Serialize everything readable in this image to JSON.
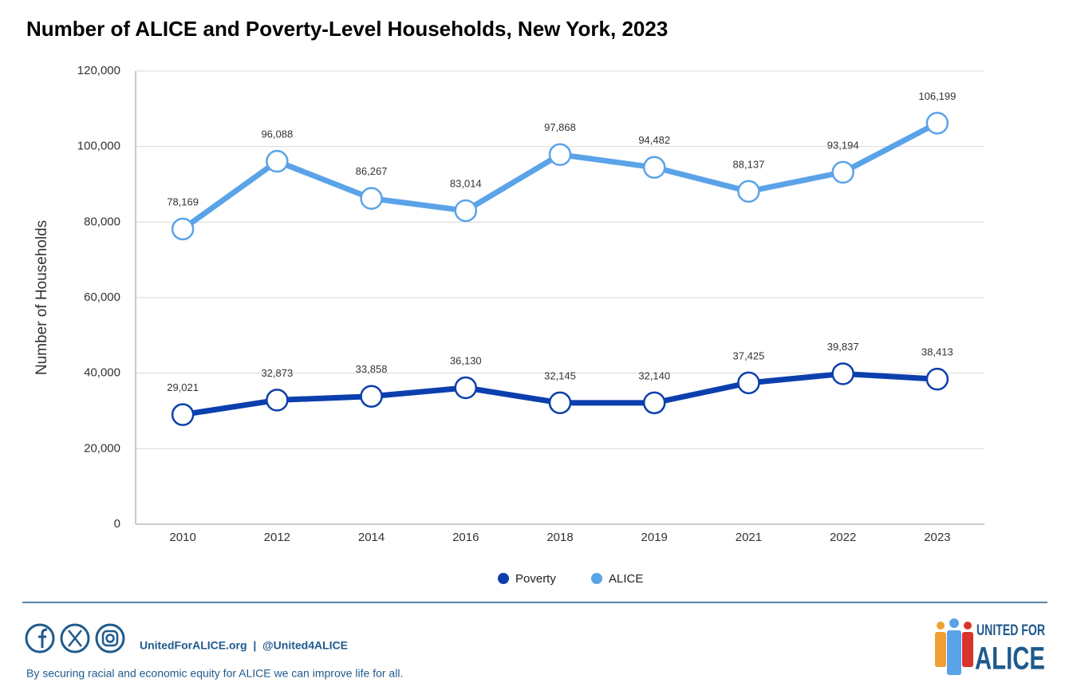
{
  "chart_data": {
    "type": "line",
    "title": "Number of ALICE and Poverty-Level Households, New York, 2023",
    "y_label": "Number of Households",
    "categories": [
      "2010",
      "2012",
      "2014",
      "2016",
      "2018",
      "2019",
      "2021",
      "2022",
      "2023"
    ],
    "series": [
      {
        "name": "Poverty",
        "color": "#0b3fae",
        "values": [
          29021,
          32873,
          33858,
          36130,
          32145,
          32140,
          37425,
          39837,
          38413
        ],
        "value_labels": [
          "29,021",
          "32,873",
          "33,858",
          "36,130",
          "32,145",
          "32,140",
          "37,425",
          "39,837",
          "38,413"
        ]
      },
      {
        "name": "ALICE",
        "color": "#5ba3e8",
        "values": [
          78169,
          96088,
          86267,
          83014,
          97868,
          94482,
          88137,
          93194,
          106199
        ],
        "value_labels": [
          "78,169",
          "96,088",
          "86,267",
          "83,014",
          "97,868",
          "94,482",
          "88,137",
          "93,194",
          "106,199"
        ]
      }
    ],
    "ylim": [
      0,
      120000
    ],
    "yticks": [
      0,
      {
        "value": 20000,
        "label": "20,000"
      },
      {
        "value": 40000,
        "label": "40,000"
      },
      {
        "value": 60000,
        "label": "60,000"
      },
      {
        "value": 80000,
        "label": "80,000"
      },
      {
        "value": 100000,
        "label": "100,000"
      },
      {
        "value": 120000,
        "label": "120,000"
      }
    ],
    "grid": true,
    "legend": "bottom"
  },
  "footer": {
    "links": "UnitedForALICE.org  |  @United4ALICE",
    "tagline": "By securing racial and economic equity for ALICE we can improve life for all.",
    "logo_line1": "UNITED FOR",
    "logo_line2": "ALICE"
  }
}
